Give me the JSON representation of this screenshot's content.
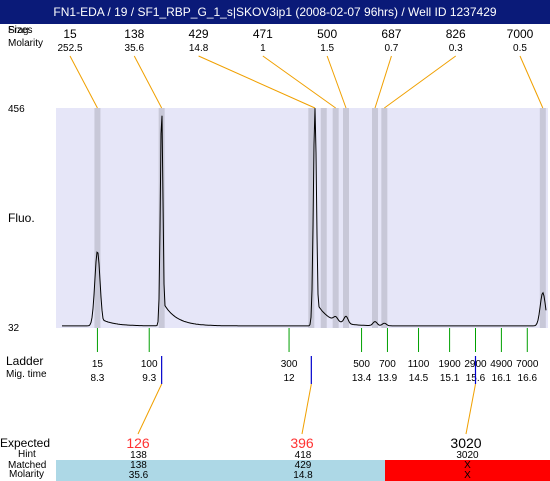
{
  "header": {
    "title": "FN1-EDA / 19 / SF1_RBP_G_1_s|SKOV3ip1 (2008-02-07 96hrs) / Well ID 1237429",
    "row_label_sizes": "Sizes",
    "row_label_frag": "Frag.",
    "row_label_molarity": "Molarity"
  },
  "axis": {
    "y_label": "Fluo.",
    "y_top_tick": "456",
    "y_bottom_tick": "32",
    "ladder_label": "Ladder",
    "migtime_label": "Mig. time"
  },
  "chart_data": {
    "type": "line",
    "title": "FN1-EDA / 19 / SF1_RBP_G_1_s|SKOV3ip1 (2008-02-07 96hrs) / Well ID 1237429",
    "ylabel": "Fluo.",
    "ylim": [
      32,
      456
    ],
    "xlim": [
      7.5,
      17.0
    ],
    "grid": false,
    "background_color": "#e6e6f8",
    "band_color": "#c8c8d8",
    "trace_color": "#000000",
    "top_line_color": "#f0a000",
    "bottom_line_color": "#00a000",
    "peaks": [
      {
        "size": "15",
        "molarity": "252.5",
        "time": 8.3,
        "height": 180,
        "width": 0.05,
        "tail": true
      },
      {
        "size": "138",
        "molarity": "35.6",
        "time": 9.54,
        "height": 456,
        "width": 0.025,
        "tail": true
      },
      {
        "size": "429",
        "molarity": "14.8",
        "time": 12.5,
        "height": 456,
        "width": 0.03,
        "tail": true
      },
      {
        "size": "471",
        "molarity": "1",
        "time": 12.9,
        "height": 44,
        "width": 0.04,
        "tail": false
      },
      {
        "size": "500",
        "molarity": "1.5",
        "time": 13.1,
        "height": 50,
        "width": 0.04,
        "tail": false
      },
      {
        "size": "687",
        "molarity": "0.7",
        "time": 13.66,
        "height": 44,
        "width": 0.04,
        "tail": false
      },
      {
        "size": "826",
        "molarity": "0.3",
        "time": 13.84,
        "height": 41,
        "width": 0.04,
        "tail": false
      },
      {
        "size": "7000",
        "molarity": "0.5",
        "time": 16.9,
        "height": 100,
        "width": 0.05,
        "tail": false
      }
    ],
    "band_times": [
      8.3,
      9.54,
      12.43,
      12.67,
      12.9,
      13.1,
      13.66,
      13.84,
      16.9
    ],
    "ladder": [
      {
        "size": "15",
        "time": "8.3",
        "t": 8.3
      },
      {
        "size": "100",
        "time": "9.3",
        "t": 9.3
      },
      {
        "size": "300",
        "time": "12",
        "t": 12.0
      },
      {
        "size": "500",
        "time": "13.4",
        "t": 13.4
      },
      {
        "size": "700",
        "time": "13.9",
        "t": 13.9
      },
      {
        "size": "1100",
        "time": "14.5",
        "t": 14.5
      },
      {
        "size": "1900",
        "time": "15.1",
        "t": 15.1
      },
      {
        "size": "2900",
        "time": "15.6",
        "t": 15.6
      },
      {
        "size": "4900",
        "time": "16.1",
        "t": 16.1
      },
      {
        "size": "7000",
        "time": "16.6",
        "t": 16.6
      }
    ],
    "expected": [
      {
        "value": "126",
        "t": 9.54,
        "color": "#ff3333"
      },
      {
        "value": "396",
        "t": 12.43,
        "color": "#ff3333"
      },
      {
        "value": "3020",
        "t": 15.6,
        "color": "#000000"
      }
    ]
  },
  "bottom_table": {
    "expected_label": "Expected",
    "hint_label": "Hint",
    "matched_label": "Matched",
    "molarity_label": "Molarity",
    "matched_color": "#add8e6",
    "unmatched_color": "#ff0000",
    "columns": [
      {
        "expected": "126",
        "hint": "138",
        "matched": "138",
        "molarity": "35.6"
      },
      {
        "expected": "396",
        "hint": "418",
        "matched": "429",
        "molarity": "14.8"
      },
      {
        "expected": "3020",
        "hint": "3020",
        "matched": "X",
        "molarity": "X"
      }
    ]
  }
}
